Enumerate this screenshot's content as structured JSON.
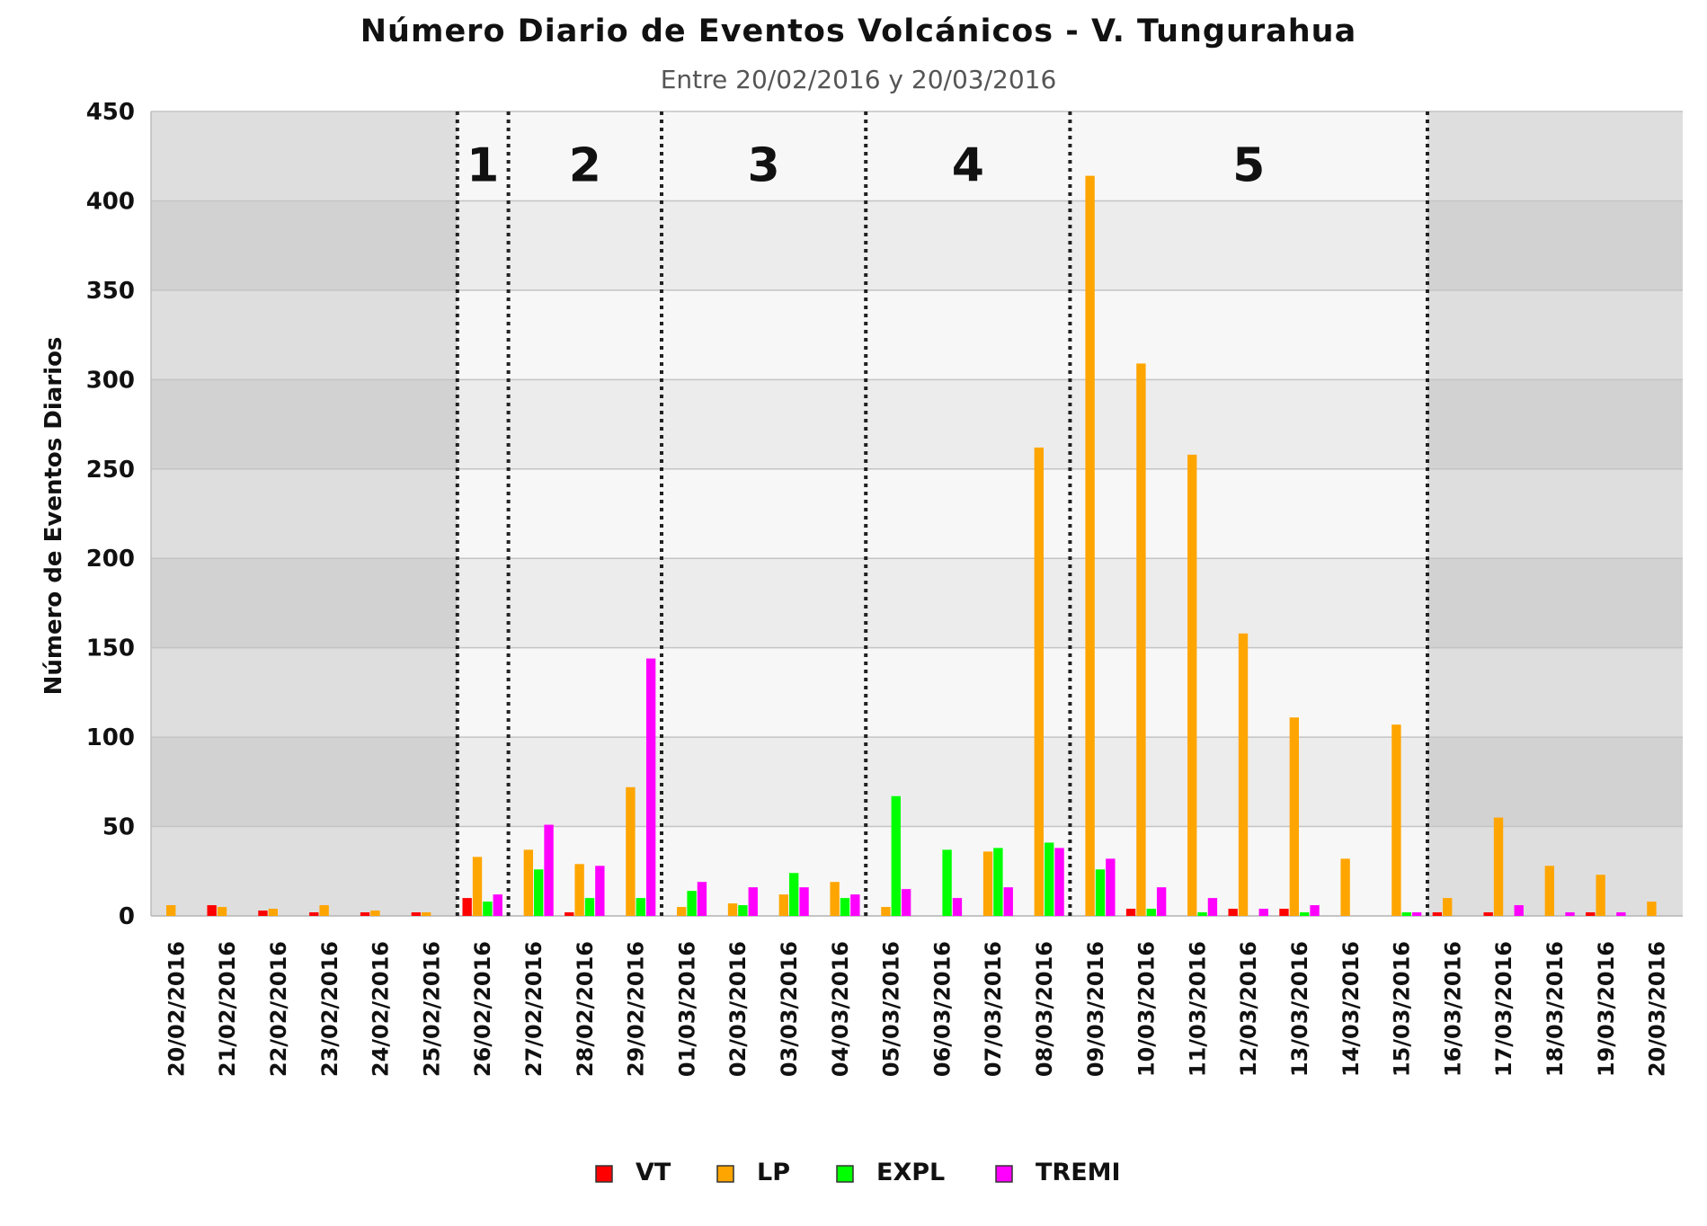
{
  "chart_data": {
    "type": "bar",
    "title": "Número Diario de Eventos Volcánicos -  V. Tungurahua",
    "subtitle": "Entre 20/02/2016 y 20/03/2016",
    "ylabel": "Número de Eventos Diarios",
    "xlabel": "",
    "ylim": [
      0,
      450
    ],
    "yticks": [
      "0",
      "50",
      "100",
      "150",
      "200",
      "250",
      "300",
      "350",
      "400",
      "450"
    ],
    "categories": [
      "20/02/2016",
      "21/02/2016",
      "22/02/2016",
      "23/02/2016",
      "24/02/2016",
      "25/02/2016",
      "26/02/2016",
      "27/02/2016",
      "28/02/2016",
      "29/02/2016",
      "01/03/2016",
      "02/03/2016",
      "03/03/2016",
      "04/03/2016",
      "05/03/2016",
      "06/03/2016",
      "07/03/2016",
      "08/03/2016",
      "09/03/2016",
      "10/03/2016",
      "11/03/2016",
      "12/03/2016",
      "13/03/2016",
      "14/03/2016",
      "15/03/2016",
      "16/03/2016",
      "17/03/2016",
      "18/03/2016",
      "19/03/2016",
      "20/03/2016"
    ],
    "series": [
      {
        "name": "VT",
        "color": "#ff0000",
        "values": [
          0,
          6,
          3,
          2,
          2,
          2,
          10,
          0,
          2,
          0,
          0,
          0,
          0,
          0,
          0,
          0,
          0,
          0,
          0,
          4,
          0,
          4,
          4,
          0,
          0,
          2,
          2,
          0,
          2,
          0
        ]
      },
      {
        "name": "LP",
        "color": "#ffa500",
        "values": [
          6,
          5,
          4,
          6,
          3,
          2,
          33,
          37,
          29,
          72,
          5,
          7,
          12,
          19,
          5,
          0,
          36,
          262,
          414,
          309,
          258,
          158,
          111,
          32,
          107,
          10,
          55,
          28,
          23,
          8
        ]
      },
      {
        "name": "EXPL",
        "color": "#00ff00",
        "values": [
          0,
          0,
          0,
          0,
          0,
          0,
          8,
          26,
          10,
          10,
          14,
          6,
          24,
          10,
          67,
          37,
          38,
          41,
          26,
          4,
          2,
          0,
          2,
          0,
          2,
          0,
          0,
          0,
          0,
          0
        ]
      },
      {
        "name": "TREMI",
        "color": "#ff00ff",
        "values": [
          0,
          0,
          0,
          0,
          0,
          0,
          12,
          51,
          28,
          144,
          19,
          16,
          16,
          12,
          15,
          10,
          16,
          38,
          32,
          16,
          10,
          4,
          6,
          0,
          2,
          0,
          6,
          2,
          2,
          0
        ]
      }
    ],
    "phase_labels": [
      "1",
      "2",
      "3",
      "4",
      "5"
    ],
    "phase_boundaries_after_category": [
      5,
      6,
      9,
      13,
      17,
      24
    ],
    "shaded_ranges": [
      {
        "from": "20/02/2016",
        "to": "25/02/2016",
        "style": "dark-grey"
      },
      {
        "from": "16/03/2016",
        "to": "20/03/2016",
        "style": "dark-grey"
      }
    ],
    "grid": true,
    "legend_placement": "bottom-center"
  }
}
